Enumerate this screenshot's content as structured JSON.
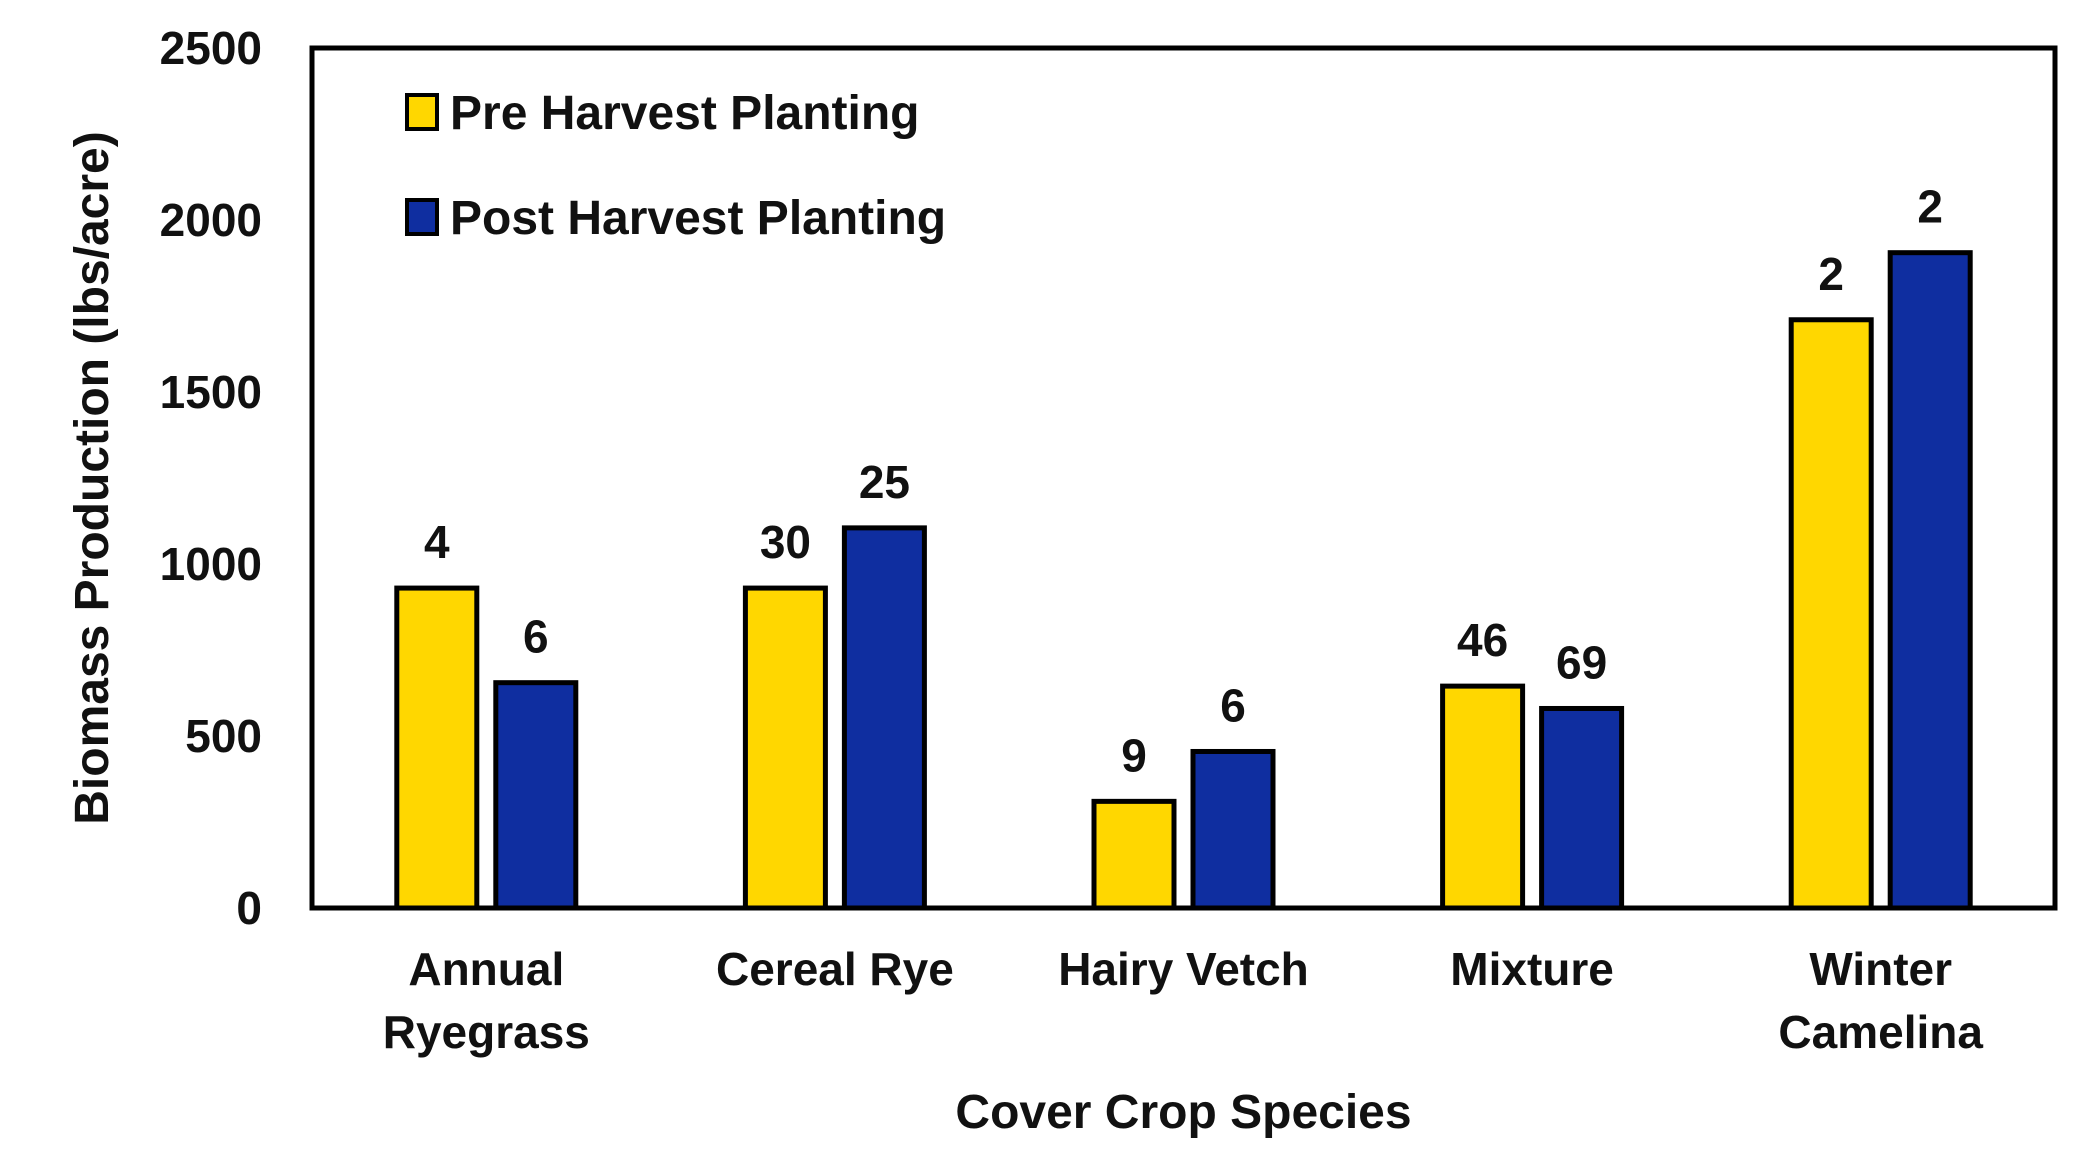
{
  "chart_data": {
    "type": "bar",
    "title": "",
    "xlabel": "Cover Crop Species",
    "ylabel": "Biomass Production (lbs/acre)",
    "ylim": [
      0,
      2500
    ],
    "yticks": [
      0,
      500,
      1000,
      1500,
      2000,
      2500
    ],
    "categories": [
      [
        "Annual",
        "Ryegrass"
      ],
      [
        "Cereal Rye"
      ],
      [
        "Hairy Vetch"
      ],
      [
        "Mixture"
      ],
      [
        "Winter",
        "Camelina"
      ]
    ],
    "series": [
      {
        "name": "Pre Harvest Planting",
        "color": "#FFD700",
        "values": [
          930,
          930,
          310,
          645,
          1710
        ],
        "labels": [
          "4",
          "30",
          "9",
          "46",
          "2"
        ]
      },
      {
        "name": "Post Harvest Planting",
        "color": "#0F2EA0",
        "values": [
          655,
          1105,
          455,
          580,
          1905
        ],
        "labels": [
          "6",
          "25",
          "6",
          "69",
          "2"
        ]
      }
    ],
    "legend_position": "top-left",
    "grid": false
  }
}
